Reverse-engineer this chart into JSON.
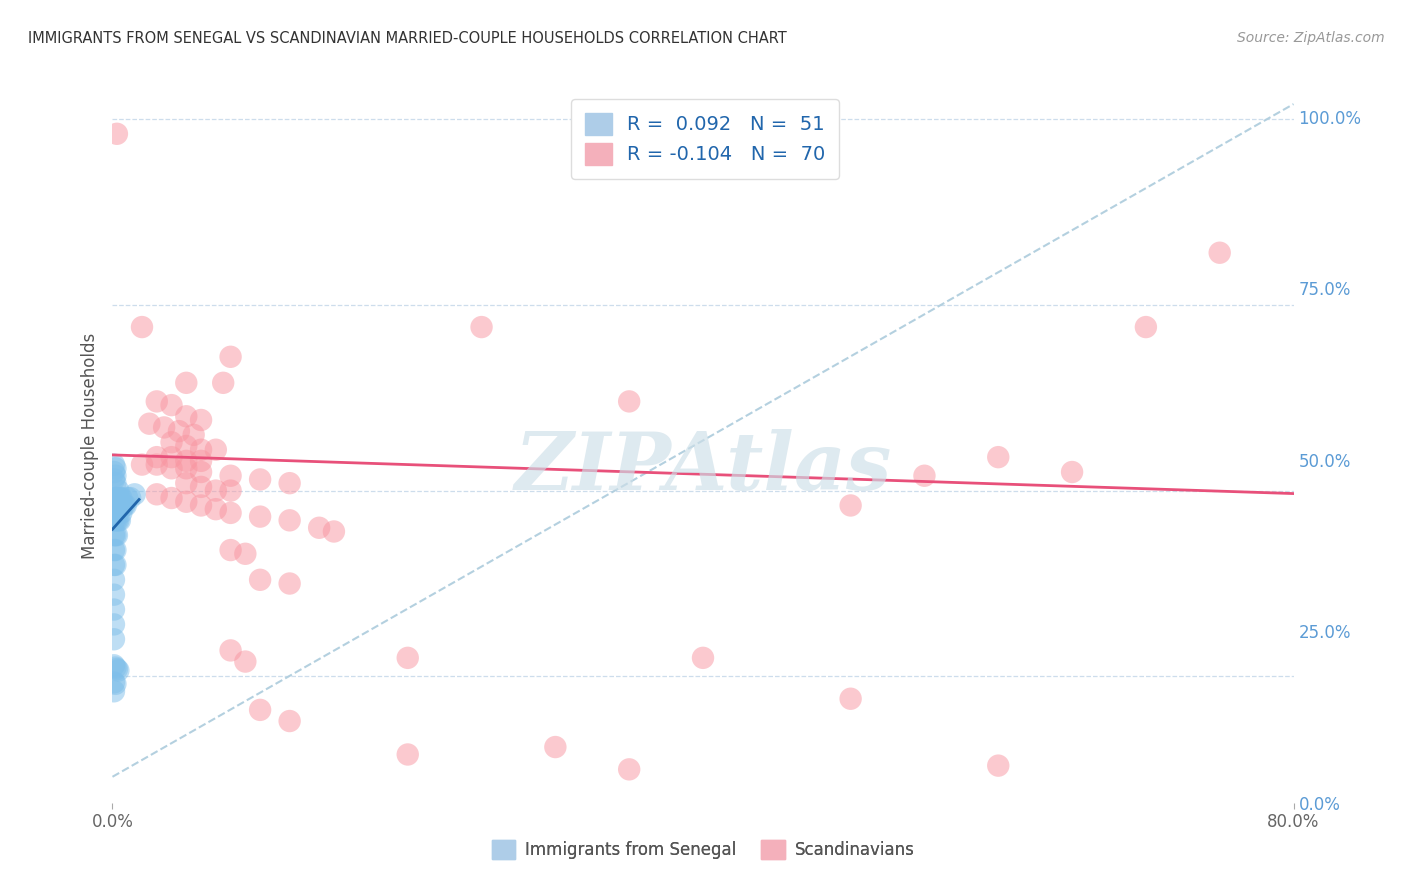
{
  "title": "IMMIGRANTS FROM SENEGAL VS SCANDINAVIAN MARRIED-COUPLE HOUSEHOLDS CORRELATION CHART",
  "source": "Source: ZipAtlas.com",
  "ylabel_label": "Married-couple Households",
  "right_ytick_vals": [
    0.0,
    0.25,
    0.5,
    0.75,
    1.0
  ],
  "right_ytick_labels": [
    "0.0%",
    "25.0%",
    "50.0%",
    "75.0%",
    "100.0%"
  ],
  "bottom_legend": [
    "Immigrants from Senegal",
    "Scandinavians"
  ],
  "blue_color": "#7fbfea",
  "pink_color": "#f895a0",
  "trend_blue_color": "#2166ac",
  "trend_pink_color": "#e8507a",
  "trend_dashed_color": "#b0cede",
  "watermark": "ZIPAtlas",
  "watermark_color": "#cddfe8",
  "blue_scatter": [
    [
      0.001,
      0.535
    ],
    [
      0.001,
      0.525
    ],
    [
      0.001,
      0.515
    ],
    [
      0.002,
      0.53
    ],
    [
      0.002,
      0.52
    ],
    [
      0.002,
      0.51
    ],
    [
      0.001,
      0.49
    ],
    [
      0.002,
      0.49
    ],
    [
      0.003,
      0.49
    ],
    [
      0.001,
      0.48
    ],
    [
      0.002,
      0.48
    ],
    [
      0.003,
      0.48
    ],
    [
      0.003,
      0.47
    ],
    [
      0.004,
      0.5
    ],
    [
      0.004,
      0.49
    ],
    [
      0.004,
      0.48
    ],
    [
      0.005,
      0.49
    ],
    [
      0.005,
      0.48
    ],
    [
      0.001,
      0.46
    ],
    [
      0.002,
      0.46
    ],
    [
      0.003,
      0.46
    ],
    [
      0.004,
      0.46
    ],
    [
      0.005,
      0.46
    ],
    [
      0.006,
      0.49
    ],
    [
      0.006,
      0.47
    ],
    [
      0.007,
      0.48
    ],
    [
      0.008,
      0.48
    ],
    [
      0.001,
      0.44
    ],
    [
      0.002,
      0.44
    ],
    [
      0.003,
      0.44
    ],
    [
      0.001,
      0.42
    ],
    [
      0.002,
      0.42
    ],
    [
      0.001,
      0.4
    ],
    [
      0.002,
      0.4
    ],
    [
      0.001,
      0.38
    ],
    [
      0.001,
      0.36
    ],
    [
      0.001,
      0.34
    ],
    [
      0.001,
      0.32
    ],
    [
      0.001,
      0.3
    ],
    [
      0.001,
      0.265
    ],
    [
      0.002,
      0.262
    ],
    [
      0.003,
      0.26
    ],
    [
      0.004,
      0.258
    ],
    [
      0.001,
      0.242
    ],
    [
      0.002,
      0.24
    ],
    [
      0.001,
      0.23
    ],
    [
      0.009,
      0.48
    ],
    [
      0.01,
      0.49
    ],
    [
      0.012,
      0.49
    ],
    [
      0.015,
      0.495
    ]
  ],
  "pink_scatter": [
    [
      0.003,
      0.98
    ],
    [
      0.05,
      0.645
    ],
    [
      0.075,
      0.645
    ],
    [
      0.02,
      0.72
    ],
    [
      0.08,
      0.68
    ],
    [
      0.03,
      0.62
    ],
    [
      0.04,
      0.615
    ],
    [
      0.05,
      0.6
    ],
    [
      0.06,
      0.595
    ],
    [
      0.025,
      0.59
    ],
    [
      0.035,
      0.585
    ],
    [
      0.045,
      0.58
    ],
    [
      0.055,
      0.575
    ],
    [
      0.04,
      0.565
    ],
    [
      0.05,
      0.56
    ],
    [
      0.06,
      0.555
    ],
    [
      0.07,
      0.555
    ],
    [
      0.03,
      0.545
    ],
    [
      0.04,
      0.545
    ],
    [
      0.05,
      0.54
    ],
    [
      0.06,
      0.54
    ],
    [
      0.02,
      0.535
    ],
    [
      0.03,
      0.535
    ],
    [
      0.04,
      0.53
    ],
    [
      0.05,
      0.53
    ],
    [
      0.06,
      0.525
    ],
    [
      0.08,
      0.52
    ],
    [
      0.1,
      0.515
    ],
    [
      0.12,
      0.51
    ],
    [
      0.05,
      0.51
    ],
    [
      0.06,
      0.505
    ],
    [
      0.07,
      0.5
    ],
    [
      0.08,
      0.5
    ],
    [
      0.03,
      0.495
    ],
    [
      0.04,
      0.49
    ],
    [
      0.05,
      0.485
    ],
    [
      0.06,
      0.48
    ],
    [
      0.07,
      0.475
    ],
    [
      0.08,
      0.47
    ],
    [
      0.1,
      0.465
    ],
    [
      0.12,
      0.46
    ],
    [
      0.14,
      0.45
    ],
    [
      0.15,
      0.445
    ],
    [
      0.08,
      0.42
    ],
    [
      0.09,
      0.415
    ],
    [
      0.1,
      0.38
    ],
    [
      0.12,
      0.375
    ],
    [
      0.08,
      0.285
    ],
    [
      0.09,
      0.27
    ],
    [
      0.2,
      0.275
    ],
    [
      0.1,
      0.205
    ],
    [
      0.12,
      0.19
    ],
    [
      0.3,
      0.155
    ],
    [
      0.35,
      0.125
    ],
    [
      0.4,
      0.275
    ],
    [
      0.5,
      0.22
    ],
    [
      0.2,
      0.145
    ],
    [
      0.6,
      0.13
    ],
    [
      0.7,
      0.72
    ],
    [
      0.75,
      0.82
    ],
    [
      0.25,
      0.72
    ],
    [
      0.35,
      0.62
    ],
    [
      0.5,
      0.48
    ],
    [
      0.55,
      0.52
    ],
    [
      0.6,
      0.545
    ],
    [
      0.65,
      0.525
    ]
  ],
  "xlim": [
    0.0,
    0.8
  ],
  "ylim_low": 0.08,
  "ylim_high": 1.04,
  "blue_trend_x": [
    0.0,
    0.018
  ],
  "blue_trend_y": [
    0.448,
    0.488
  ],
  "pink_trend_x": [
    0.0,
    0.8
  ],
  "pink_trend_y": [
    0.548,
    0.496
  ],
  "dashed_trend_x": [
    0.0,
    0.8
  ],
  "dashed_trend_y": [
    0.115,
    1.02
  ]
}
